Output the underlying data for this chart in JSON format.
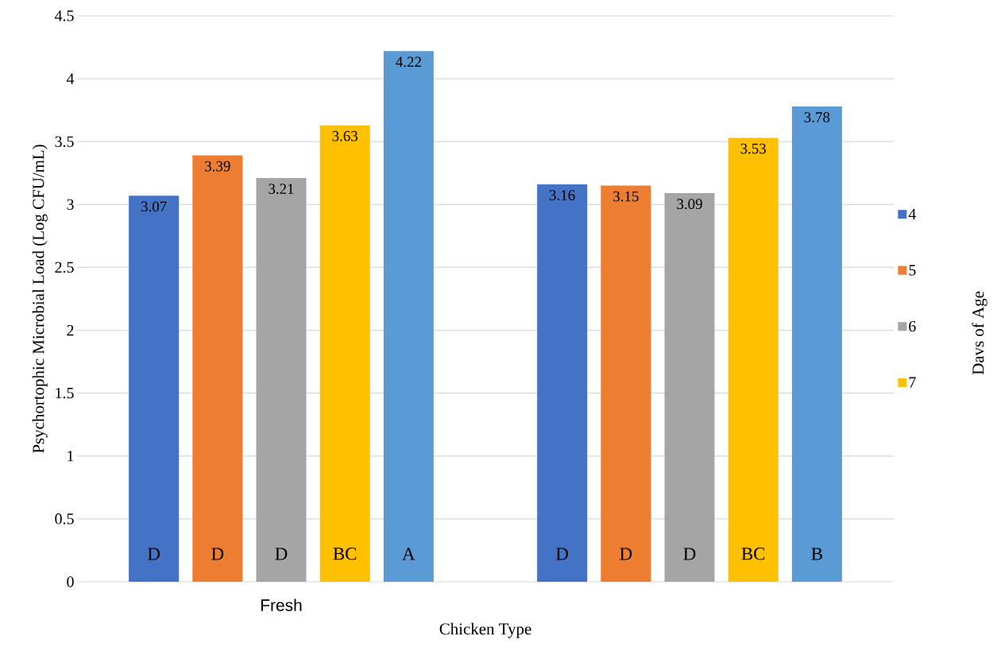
{
  "chart_data": {
    "type": "bar",
    "xlabel": "Chicken Type",
    "ylabel": "Psychortophic Microbial Load (Log CFU/mL)",
    "legend_title": "Davs of Age",
    "categories": [
      "Fresh",
      null
    ],
    "series": [
      {
        "name": "4",
        "color": "#4472c4",
        "values": [
          3.07,
          3.16
        ]
      },
      {
        "name": "5",
        "color": "#ed7d31",
        "values": [
          3.39,
          3.15
        ]
      },
      {
        "name": "6",
        "color": "#a5a5a5",
        "values": [
          3.21,
          3.09
        ]
      },
      {
        "name": "7",
        "color": "#ffc000",
        "values": [
          3.63,
          3.53
        ]
      },
      {
        "color": "#5b9bd5",
        "values": [
          4.22,
          3.78
        ]
      }
    ],
    "ylim": [
      0,
      4.5
    ],
    "yticks": [
      0,
      0.5,
      1,
      1.5,
      2,
      2.5,
      3,
      3.5,
      4,
      4.5
    ],
    "grid": "y",
    "legend": "right",
    "data_labels": true,
    "annotations": [
      "D",
      "D",
      "D",
      "BC",
      "A",
      "D",
      "D",
      "D",
      "BC",
      "B"
    ]
  }
}
